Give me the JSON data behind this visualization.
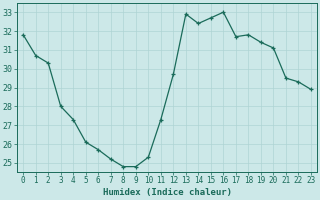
{
  "x": [
    0,
    1,
    2,
    3,
    4,
    5,
    6,
    7,
    8,
    9,
    10,
    11,
    12,
    13,
    14,
    15,
    16,
    17,
    18,
    19,
    20,
    21,
    22,
    23
  ],
  "y": [
    31.8,
    30.7,
    30.3,
    28.0,
    27.3,
    26.1,
    25.7,
    25.2,
    24.8,
    24.8,
    25.3,
    27.3,
    29.7,
    32.9,
    32.4,
    32.7,
    33.0,
    31.7,
    31.8,
    31.4,
    31.1,
    29.5,
    29.3,
    28.9
  ],
  "line_color": "#1a6b5a",
  "marker": "+",
  "bg_color": "#cce8e8",
  "grid_color": "#afd4d4",
  "xlabel": "Humidex (Indice chaleur)",
  "xlabel_fontsize": 6.5,
  "tick_color": "#1a6b5a",
  "label_color": "#1a6b5a",
  "ylim": [
    24.5,
    33.5
  ],
  "xlim": [
    -0.5,
    23.5
  ],
  "yticks": [
    25,
    26,
    27,
    28,
    29,
    30,
    31,
    32,
    33
  ],
  "xticks": [
    0,
    1,
    2,
    3,
    4,
    5,
    6,
    7,
    8,
    9,
    10,
    11,
    12,
    13,
    14,
    15,
    16,
    17,
    18,
    19,
    20,
    21,
    22,
    23
  ],
  "tick_fontsize": 5.5,
  "ytick_fontsize": 6.0
}
